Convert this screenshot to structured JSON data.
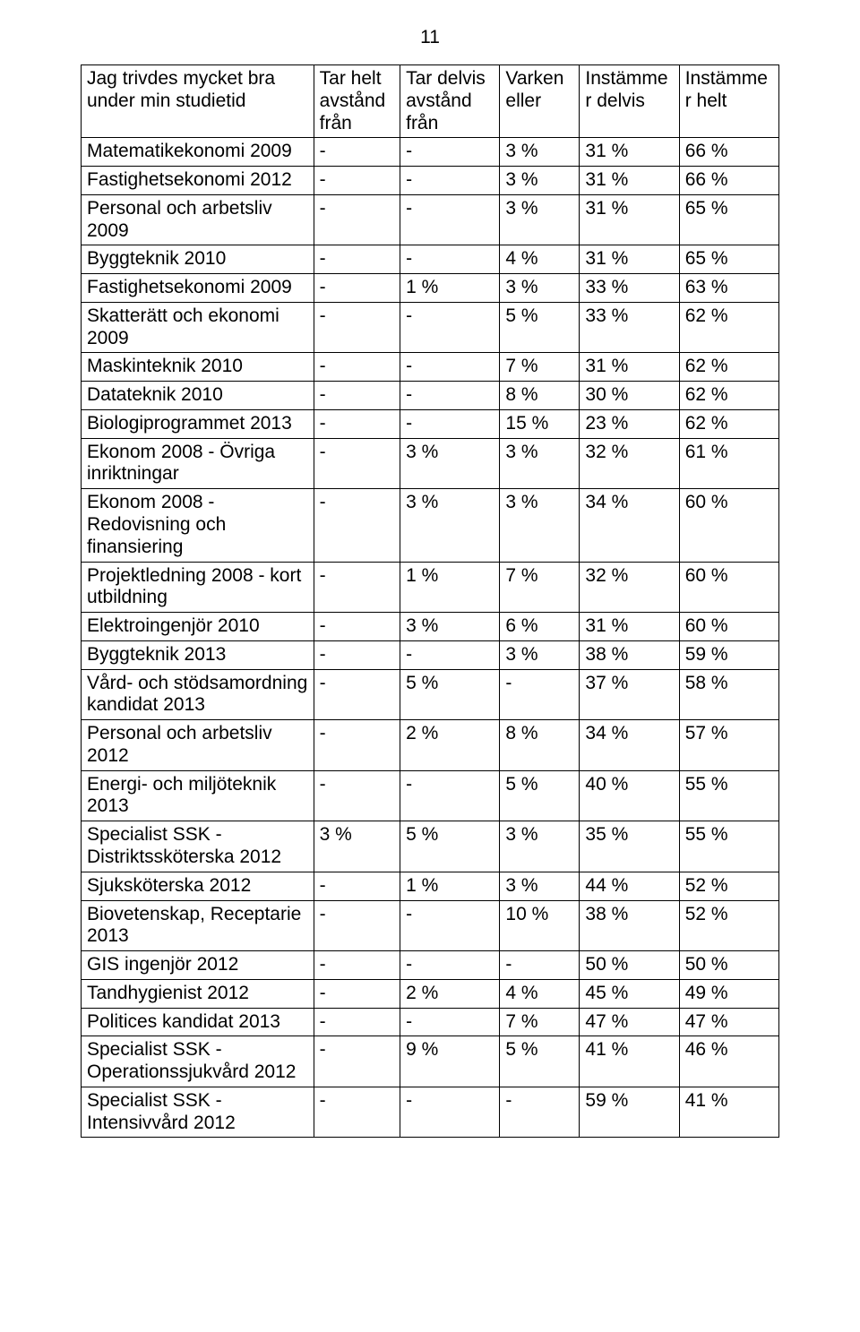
{
  "page_number": "11",
  "table": {
    "columns": [
      "Jag trivdes mycket bra under min studietid",
      "Tar helt avstånd från",
      "Tar delvis avstånd från",
      "Varken eller",
      "Instämmer delvis",
      "Instämmer helt"
    ],
    "rows": [
      [
        "Matematikekonomi 2009",
        "-",
        "-",
        "3 %",
        "31 %",
        "66 %"
      ],
      [
        "Fastighetsekonomi 2012",
        "-",
        "-",
        "3 %",
        "31 %",
        "66 %"
      ],
      [
        "Personal och arbetsliv 2009",
        "-",
        "-",
        "3 %",
        "31 %",
        "65 %"
      ],
      [
        "Byggteknik 2010",
        "-",
        "-",
        "4 %",
        "31 %",
        "65 %"
      ],
      [
        "Fastighetsekonomi 2009",
        "-",
        "1 %",
        "3 %",
        "33 %",
        "63 %"
      ],
      [
        "Skatterätt och ekonomi 2009",
        "-",
        "-",
        "5 %",
        "33 %",
        "62 %"
      ],
      [
        "Maskinteknik 2010",
        "-",
        "-",
        "7 %",
        "31 %",
        "62 %"
      ],
      [
        "Datateknik 2010",
        "-",
        "-",
        "8 %",
        "30 %",
        "62 %"
      ],
      [
        "Biologiprogrammet 2013",
        "-",
        "-",
        "15 %",
        "23 %",
        "62 %"
      ],
      [
        "Ekonom 2008 - Övriga inriktningar",
        "-",
        "3 %",
        "3 %",
        "32 %",
        "61 %"
      ],
      [
        "Ekonom 2008 - Redovisning och finansiering",
        "-",
        "3 %",
        "3 %",
        "34 %",
        "60 %"
      ],
      [
        "Projektledning 2008 - kort utbildning",
        "-",
        "1 %",
        "7 %",
        "32 %",
        "60 %"
      ],
      [
        "Elektroingenjör 2010",
        "-",
        "3 %",
        "6 %",
        "31 %",
        "60 %"
      ],
      [
        "Byggteknik 2013",
        "-",
        "-",
        "3 %",
        "38 %",
        "59 %"
      ],
      [
        "Vård- och stödsamordning kandidat 2013",
        "-",
        "5 %",
        "-",
        "37 %",
        "58 %"
      ],
      [
        "Personal och arbetsliv 2012",
        "-",
        "2 %",
        "8 %",
        "34 %",
        "57 %"
      ],
      [
        "Energi- och miljöteknik 2013",
        "-",
        "-",
        "5 %",
        "40 %",
        "55 %"
      ],
      [
        "Specialist SSK - Distriktssköterska 2012",
        "3 %",
        "5 %",
        "3 %",
        "35 %",
        "55  %"
      ],
      [
        "Sjuksköterska 2012",
        "-",
        "1 %",
        "3 %",
        "44 %",
        "52 %"
      ],
      [
        "Biovetenskap, Receptarie 2013",
        "-",
        "-",
        "10 %",
        "38 %",
        "52 %"
      ],
      [
        "GIS ingenjör 2012",
        "-",
        "-",
        "-",
        "50 %",
        "50 %"
      ],
      [
        "Tandhygienist 2012",
        "-",
        "2 %",
        "4 %",
        "45 %",
        "49 %"
      ],
      [
        "Politices kandidat 2013",
        "-",
        "-",
        "7 %",
        "47 %",
        "47 %"
      ],
      [
        "Specialist SSK - Operationssjukvård 2012",
        "-",
        "9 %",
        "5 %",
        "41 %",
        "46 %"
      ],
      [
        "Specialist SSK - Intensivvård 2012",
        "-",
        "-",
        "-",
        "59 %",
        "41 %"
      ]
    ]
  }
}
